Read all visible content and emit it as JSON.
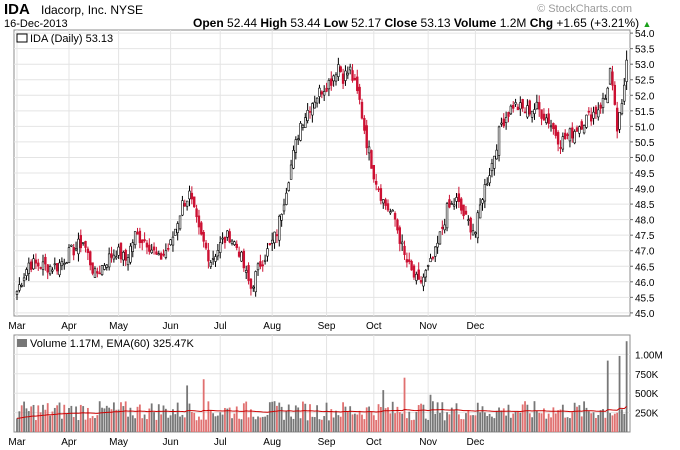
{
  "header": {
    "symbol": "IDA",
    "company": "Idacorp, Inc.  NYSE",
    "date": "16-Dec-2013",
    "open_label": "Open",
    "open": "52.44",
    "high_label": "High",
    "high": "53.44",
    "low_label": "Low",
    "low": "52.17",
    "close_label": "Close",
    "close": "53.13",
    "volume_label": "Volume",
    "volume": "1.2M",
    "chg_label": "Chg",
    "chg": "+1.65 (+3.21%)",
    "watermark": "© StockCharts.com"
  },
  "colors": {
    "up": "#000000",
    "down": "#cc1133",
    "ema": "#cc0000",
    "vol_up": "#777777",
    "vol_down": "#e07070"
  },
  "chart_data": [
    {
      "type": "candlestick",
      "legend": "IDA (Daily) 53.13",
      "x_tick_labels": [
        "Mar",
        "Apr",
        "May",
        "Jun",
        "Jul",
        "Aug",
        "Sep",
        "Oct",
        "Nov",
        "Dec"
      ],
      "y_tick_labels": [
        "45.0",
        "45.5",
        "46.0",
        "46.5",
        "47.0",
        "47.5",
        "48.0",
        "48.5",
        "49.0",
        "49.5",
        "50.0",
        "50.5",
        "51.0",
        "51.5",
        "52.0",
        "52.5",
        "53.0",
        "53.5",
        "54.0"
      ],
      "ylim": [
        44.9,
        54.1
      ],
      "grid": true,
      "anchor_closes": [
        [
          0,
          45.7
        ],
        [
          5,
          46.6
        ],
        [
          12,
          46.5
        ],
        [
          17,
          46.5
        ],
        [
          22,
          46.9
        ],
        [
          28,
          47.3
        ],
        [
          33,
          46.2
        ],
        [
          38,
          46.7
        ],
        [
          42,
          47.0
        ],
        [
          46,
          46.7
        ],
        [
          50,
          47.5
        ],
        [
          55,
          47.3
        ],
        [
          60,
          46.7
        ],
        [
          65,
          47.2
        ],
        [
          70,
          48.5
        ],
        [
          73,
          48.8
        ],
        [
          77,
          47.6
        ],
        [
          82,
          46.7
        ],
        [
          87,
          47.3
        ],
        [
          90,
          47.5
        ],
        [
          94,
          47.0
        ],
        [
          97,
          46.2
        ],
        [
          99,
          45.8
        ],
        [
          103,
          46.6
        ],
        [
          107,
          47.1
        ],
        [
          110,
          47.6
        ],
        [
          115,
          49.4
        ],
        [
          120,
          51.1
        ],
        [
          125,
          51.8
        ],
        [
          129,
          52.2
        ],
        [
          133,
          52.5
        ],
        [
          136,
          53.0
        ],
        [
          138,
          52.6
        ],
        [
          141,
          52.8
        ],
        [
          145,
          51.8
        ],
        [
          148,
          50.5
        ],
        [
          151,
          49.5
        ],
        [
          155,
          48.6
        ],
        [
          160,
          48.0
        ],
        [
          164,
          46.8
        ],
        [
          167,
          46.3
        ],
        [
          170,
          45.9
        ],
        [
          174,
          46.4
        ],
        [
          177,
          46.9
        ],
        [
          182,
          48.3
        ],
        [
          186,
          48.6
        ],
        [
          190,
          48.0
        ],
        [
          194,
          47.6
        ],
        [
          197,
          48.8
        ],
        [
          201,
          49.8
        ],
        [
          205,
          51.1
        ],
        [
          210,
          51.7
        ],
        [
          215,
          51.5
        ],
        [
          220,
          51.6
        ],
        [
          225,
          51.2
        ],
        [
          230,
          50.5
        ],
        [
          235,
          50.8
        ],
        [
          240,
          51.2
        ],
        [
          245,
          51.5
        ],
        [
          249,
          51.9
        ],
        [
          251,
          52.8
        ],
        [
          253,
          51.5
        ],
        [
          254,
          50.9
        ],
        [
          256,
          51.6
        ],
        [
          258,
          53.13
        ]
      ],
      "ohlc_last": {
        "open": 52.44,
        "high": 53.44,
        "low": 52.17,
        "close": 53.13
      }
    },
    {
      "type": "bar",
      "legend": "Volume 1.17M, EMA(60) 325.47K",
      "x_tick_labels": [
        "Mar",
        "Apr",
        "May",
        "Jun",
        "Jul",
        "Aug",
        "Sep",
        "Oct",
        "Nov",
        "Dec"
      ],
      "y_tick_labels": [
        "250K",
        "500K",
        "750K",
        "1.00M"
      ],
      "ylim": [
        0,
        1250000
      ],
      "ema_last": 325470,
      "volume_last": 1170000,
      "notable_volumes": [
        [
          72,
          600000
        ],
        [
          79,
          680000
        ],
        [
          155,
          540000
        ],
        [
          164,
          700000
        ],
        [
          175,
          480000
        ],
        [
          250,
          920000
        ],
        [
          255,
          980000
        ],
        [
          258,
          1170000
        ]
      ]
    }
  ]
}
